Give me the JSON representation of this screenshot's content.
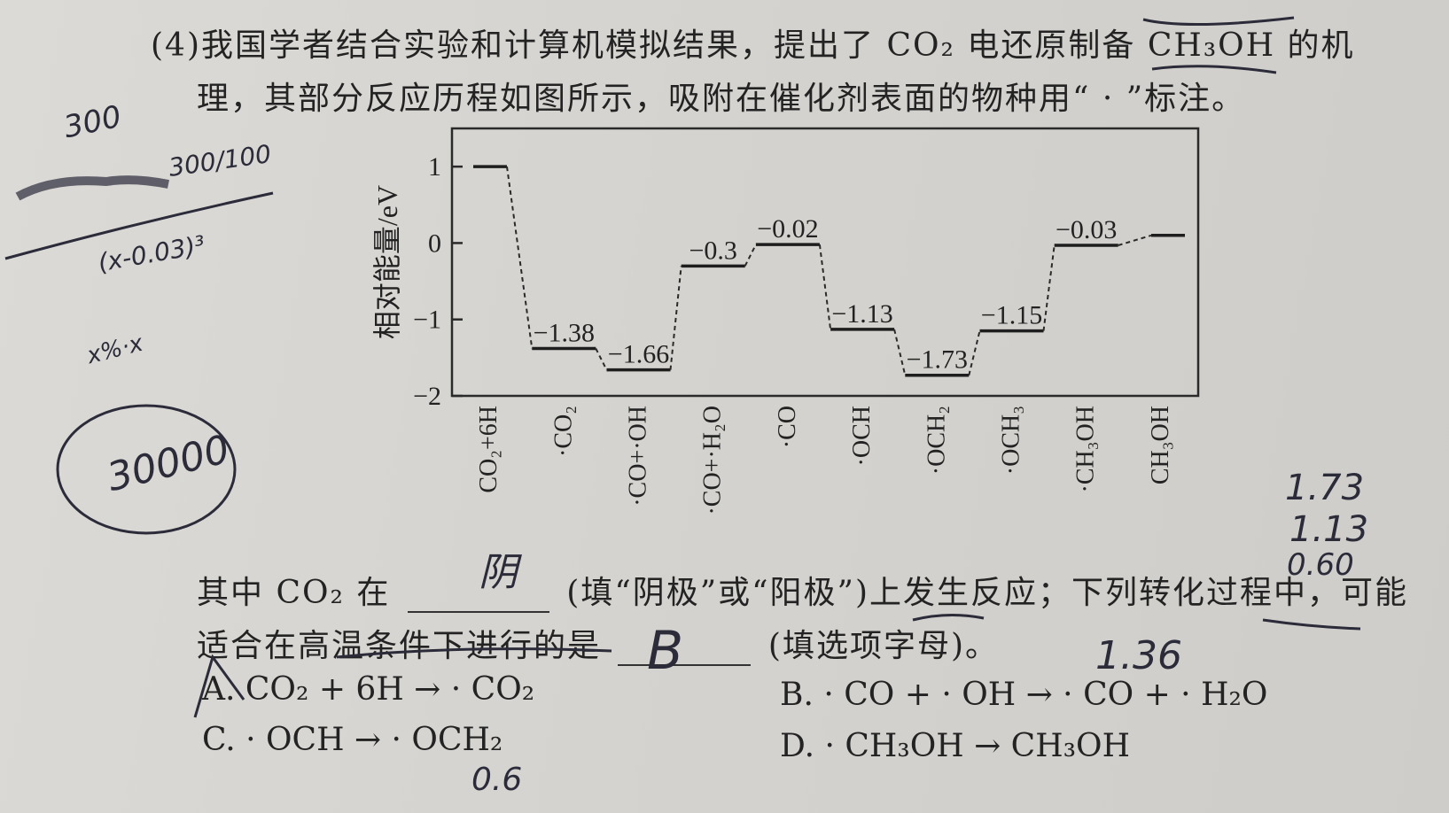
{
  "question": {
    "line1": "(4)我国学者结合实验和计算机模拟结果，提出了 CO₂ 电还原制备 CH₃OH 的机",
    "line2": "理，其部分反应历程如图所示，吸附在催化剂表面的物种用“ · ”标注。",
    "fill_a_before": "其中 CO₂ 在",
    "fill_a_after": "(填“阴极”或“阳极”)上发生反应；下列转化过程中，可能",
    "fill_b_before": "适合在高温条件下进行的是",
    "fill_b_after": "(填选项字母)。"
  },
  "options": {
    "A": "A. CO₂ + 6H → · CO₂",
    "B": "B. · CO + · OH → · CO + · H₂O",
    "C": "C. · OCH → · OCH₂",
    "D": "D. · CH₃OH → CH₃OH"
  },
  "handwriting": {
    "n1": "300",
    "n2": "30000",
    "n3": "1.73",
    "n4": "1.13",
    "n5": "0.60",
    "n6": "1.36",
    "n7": "0.6",
    "ans_a": "阴",
    "ans_b": "B",
    "calc1": "(x-0.03)³",
    "calc2": "x%·x",
    "calc3": "300/100"
  },
  "chart_data": {
    "type": "line",
    "ylabel": "相对能量/eV",
    "ylim": [
      -2,
      1.5
    ],
    "yticks": [
      1,
      0,
      -1,
      -2
    ],
    "categories": [
      "CO₂+6H",
      "·CO₂",
      "·CO+·OH",
      "·CO+·H₂O",
      "·CO",
      "·OCH",
      "·OCH₂",
      "·OCH₃",
      "·CH₃OH",
      "CH₃OH"
    ],
    "values": [
      1,
      -1.38,
      -1.66,
      -0.3,
      -0.02,
      -1.13,
      -1.73,
      -1.15,
      -0.03,
      0.1
    ],
    "data_labels": [
      "",
      "−1.38",
      "−1.66",
      "−0.3",
      "−0.02",
      "−1.13",
      "−1.73",
      "−1.15",
      "−0.03",
      ""
    ]
  }
}
